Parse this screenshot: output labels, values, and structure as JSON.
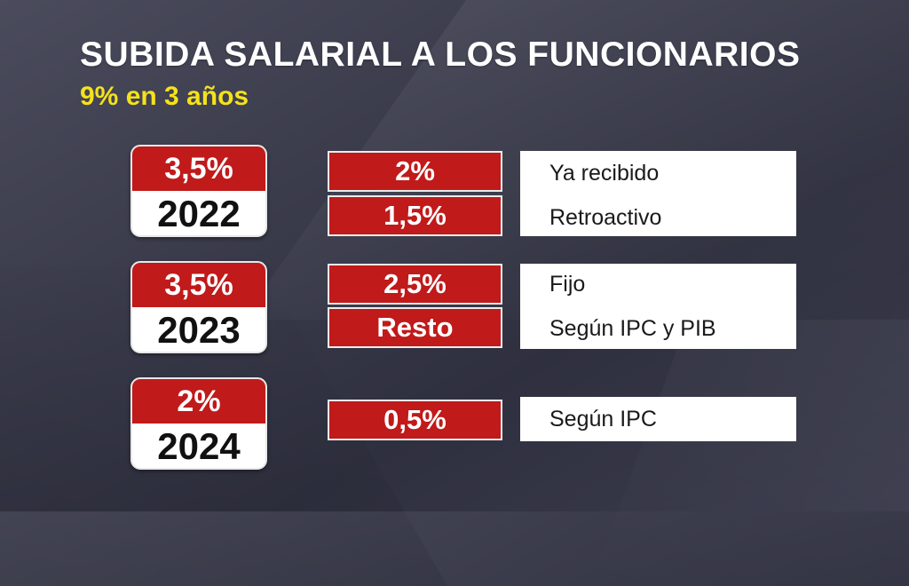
{
  "header": {
    "title": "SUBIDA SALARIAL A LOS FUNCIONARIOS",
    "subtitle": "9% en 3 años"
  },
  "colors": {
    "accent_red": "#c01a1a",
    "subtitle_yellow": "#f5e21b",
    "panel_white": "#ffffff",
    "background": "#3a3b4b"
  },
  "rows": [
    {
      "year": "2022",
      "total": "3,5%",
      "parts": [
        {
          "value": "2%",
          "description": "Ya recibido"
        },
        {
          "value": "1,5%",
          "description": "Retroactivo"
        }
      ]
    },
    {
      "year": "2023",
      "total": "3,5%",
      "parts": [
        {
          "value": "2,5%",
          "description": "Fijo"
        },
        {
          "value": "Resto",
          "description": "Según IPC y PIB"
        }
      ]
    },
    {
      "year": "2024",
      "total": "2%",
      "parts": [
        {
          "value": "0,5%",
          "description": "Según IPC"
        }
      ]
    }
  ]
}
